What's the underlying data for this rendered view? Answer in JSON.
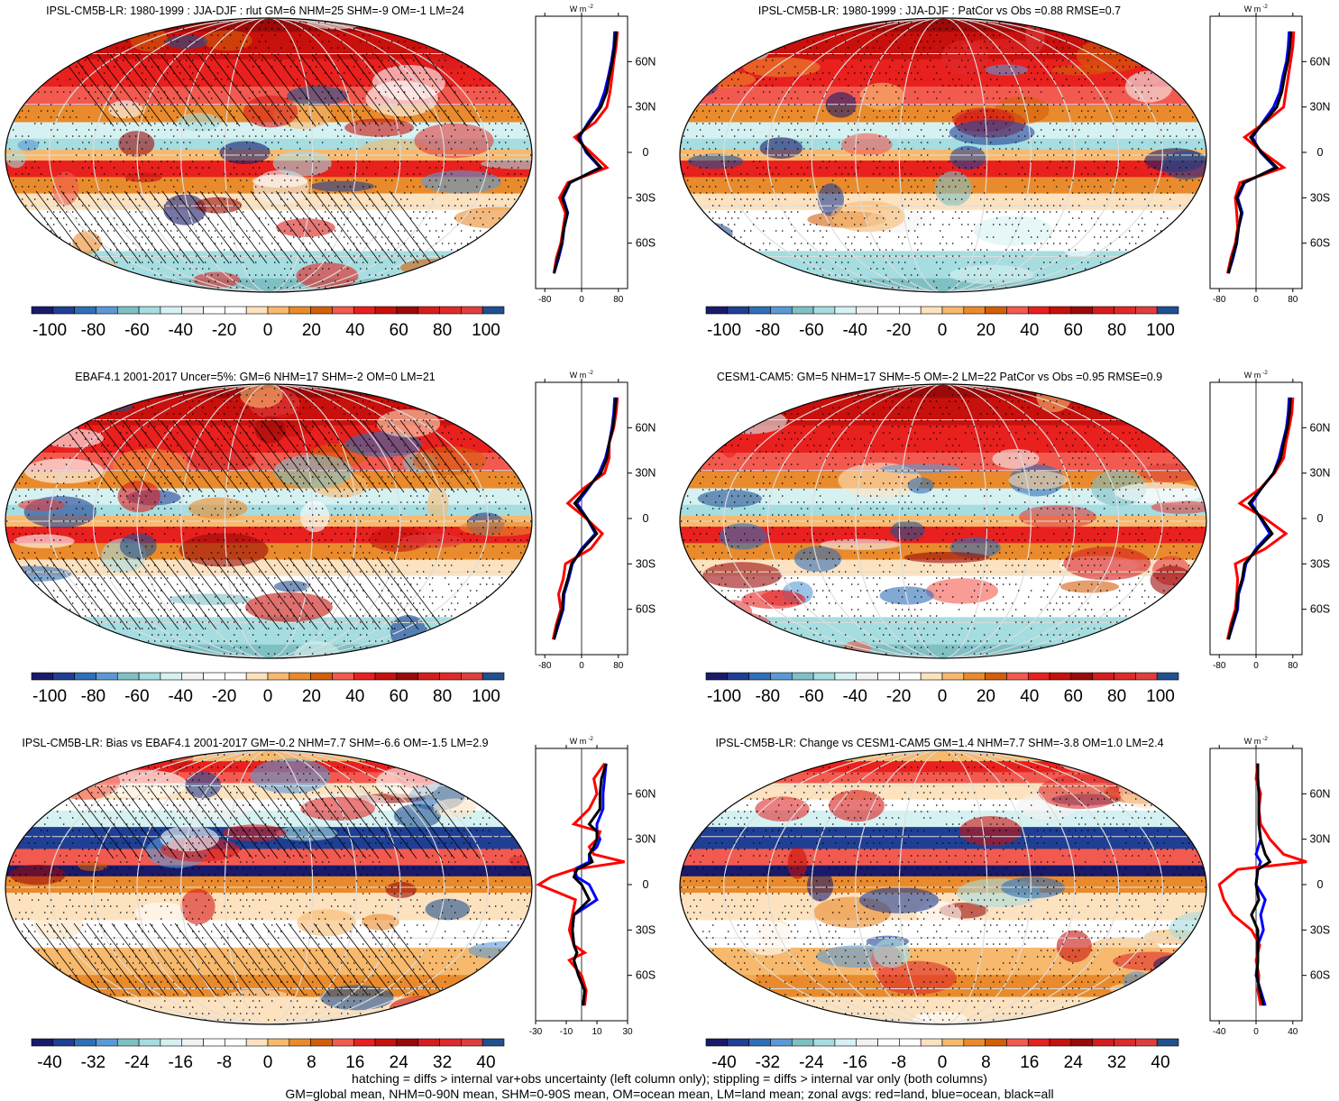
{
  "colors": {
    "standard_scale": [
      "#1a1a6b",
      "#1f3f95",
      "#2f6fb8",
      "#5a99d6",
      "#7fc0c4",
      "#a5dde0",
      "#d6f1f2",
      "#f2f2f2",
      "#ffffff",
      "#ffffff",
      "#fde2bf",
      "#f7b96e",
      "#e98b2c",
      "#d35f0a",
      "#f35a4f",
      "#e8201e",
      "#c8100c",
      "#9b0a08",
      "#d81c1c",
      "#e02a2a",
      "#e03e3e",
      "#20508f"
    ],
    "zonal_land": "#ff0000",
    "zonal_ocean": "#0000ff",
    "zonal_all": "#000000"
  },
  "panels": [
    {
      "title": "IPSL-CM5B-LR: 1980-1999 : JJA-DJF : rlut GM=6 NHM=25 SHM=-9 OM=-1 LM=24",
      "colorbar_labels": [
        "-100",
        "-80",
        "-60",
        "-40",
        "-20",
        "0",
        "20",
        "40",
        "60",
        "80",
        "100"
      ],
      "zonal_unit": "W m",
      "zonal_unit_sup": "-2",
      "zonal_ticks": [
        "-80",
        "0",
        "80"
      ],
      "lat_labels": [
        "60N",
        "30N",
        "0",
        "30S",
        "60S"
      ],
      "hatched": true
    },
    {
      "title": "IPSL-CM5B-LR: 1980-1999 : JJA-DJF : PatCor vs Obs =0.88 RMSE=0.7",
      "colorbar_labels": [
        "-100",
        "-80",
        "-60",
        "-40",
        "-20",
        "0",
        "20",
        "40",
        "60",
        "80",
        "100"
      ],
      "zonal_unit": "W m",
      "zonal_unit_sup": "-2",
      "zonal_ticks": [
        "-80",
        "0",
        "80"
      ],
      "lat_labels": [
        "60N",
        "30N",
        "0",
        "30S",
        "60S"
      ],
      "hatched": false
    },
    {
      "title": "EBAF4.1 2001-2017 Uncer=5%: GM=6 NHM=17 SHM=-2 OM=0 LM=21",
      "colorbar_labels": [
        "-100",
        "-80",
        "-60",
        "-40",
        "-20",
        "0",
        "20",
        "40",
        "60",
        "80",
        "100"
      ],
      "zonal_unit": "W m",
      "zonal_unit_sup": "-2",
      "zonal_ticks": [
        "-80",
        "0",
        "80"
      ],
      "lat_labels": [
        "60N",
        "30N",
        "0",
        "30S",
        "60S"
      ],
      "hatched": true
    },
    {
      "title": "CESM1-CAM5: GM=5 NHM=17 SHM=-5 OM=-2 LM=22 PatCor vs Obs =0.95 RMSE=0.9",
      "colorbar_labels": [
        "-100",
        "-80",
        "-60",
        "-40",
        "-20",
        "0",
        "20",
        "40",
        "60",
        "80",
        "100"
      ],
      "zonal_unit": "W m",
      "zonal_unit_sup": "-2",
      "zonal_ticks": [
        "-80",
        "0",
        "80"
      ],
      "lat_labels": [
        "60N",
        "30N",
        "0",
        "30S",
        "60S"
      ],
      "hatched": false
    },
    {
      "title": "IPSL-CM5B-LR: Bias vs EBAF4.1 2001-2017 GM=-0.2 NHM=7.7 SHM=-6.6 OM=-1.5 LM=2.9",
      "colorbar_labels": [
        "-40",
        "-32",
        "-24",
        "-16",
        "-8",
        "0",
        "8",
        "16",
        "24",
        "32",
        "40"
      ],
      "zonal_unit": "W m",
      "zonal_unit_sup": "-2",
      "zonal_ticks": [
        "-30",
        "-10",
        "10",
        "30"
      ],
      "lat_labels": [
        "60N",
        "30N",
        "0",
        "30S",
        "60S"
      ],
      "hatched": true
    },
    {
      "title": "IPSL-CM5B-LR: Change vs CESM1-CAM5 GM=1.4 NHM=7.7 SHM=-3.8 OM=1.0 LM=2.4",
      "colorbar_labels": [
        "-40",
        "-32",
        "-24",
        "-16",
        "-8",
        "0",
        "8",
        "16",
        "24",
        "32",
        "40"
      ],
      "zonal_unit": "W m",
      "zonal_unit_sup": "-2",
      "zonal_ticks": [
        "-40",
        "0",
        "40"
      ],
      "lat_labels": [
        "60N",
        "30N",
        "0",
        "30S",
        "60S"
      ],
      "hatched": false
    }
  ],
  "footer": {
    "line1": "hatching = diffs > internal var+obs uncertainty (left column only); stippling = diffs > internal var only (both columns)",
    "line2": "GM=global mean, NHM=0-90N mean, SHM=0-90S mean, OM=ocean mean, LM=land mean; zonal avgs: red=land, blue=ocean, black=all"
  },
  "chart_data": [
    {
      "type": "line",
      "title": "IPSL-CM5B-LR: 1980-1999 : JJA-DJF : rlut GM=6 NHM=25 SHM=-9 OM=-1 LM=24",
      "xlabel": "W m-2",
      "xticks": [
        -80,
        0,
        80
      ],
      "xlim": [
        -100,
        100
      ],
      "ylim": [
        -90,
        90
      ],
      "y": [
        -80,
        -70,
        -60,
        -50,
        -40,
        -30,
        -20,
        -10,
        0,
        10,
        20,
        30,
        40,
        50,
        60,
        70,
        80
      ],
      "series": [
        {
          "name": "land",
          "values": [
            -60,
            -55,
            -45,
            -40,
            -35,
            -48,
            -30,
            55,
            20,
            -15,
            30,
            55,
            62,
            66,
            70,
            75,
            78
          ]
        },
        {
          "name": "ocean",
          "values": [
            -60,
            -50,
            -42,
            -38,
            -30,
            -40,
            -25,
            40,
            10,
            -5,
            15,
            38,
            50,
            58,
            65,
            70,
            72
          ]
        },
        {
          "name": "all",
          "values": [
            -60,
            -52,
            -43,
            -38,
            -31,
            -42,
            -26,
            42,
            12,
            -8,
            18,
            42,
            55,
            60,
            67,
            72,
            75
          ]
        }
      ]
    },
    {
      "type": "line",
      "title": "IPSL-CM5B-LR: 1980-1999 : JJA-DJF : PatCor vs Obs =0.88 RMSE=0.7",
      "xlabel": "W m-2",
      "xticks": [
        -80,
        0,
        80
      ],
      "xlim": [
        -100,
        100
      ],
      "ylim": [
        -90,
        90
      ],
      "y": [
        -80,
        -70,
        -60,
        -50,
        -40,
        -30,
        -20,
        -10,
        0,
        10,
        20,
        30,
        40,
        50,
        60,
        70,
        80
      ],
      "series": [
        {
          "name": "land",
          "values": [
            -62,
            -55,
            -45,
            -40,
            -42,
            -45,
            -35,
            60,
            15,
            -25,
            20,
            60,
            65,
            70,
            75,
            80,
            82
          ]
        },
        {
          "name": "ocean",
          "values": [
            -60,
            -50,
            -42,
            -38,
            -30,
            -40,
            -25,
            42,
            10,
            -8,
            15,
            38,
            52,
            58,
            66,
            70,
            72
          ]
        },
        {
          "name": "all",
          "values": [
            -60,
            -52,
            -43,
            -38,
            -32,
            -42,
            -27,
            45,
            12,
            -12,
            18,
            45,
            56,
            62,
            69,
            74,
            76
          ]
        }
      ]
    },
    {
      "type": "line",
      "title": "EBAF4.1 2001-2017 Uncer=5%: GM=6 NHM=17 SHM=-2 OM=0 LM=21",
      "xlabel": "W m-2",
      "xticks": [
        -80,
        0,
        80
      ],
      "xlim": [
        -100,
        100
      ],
      "ylim": [
        -90,
        90
      ],
      "y": [
        -80,
        -70,
        -60,
        -50,
        -40,
        -30,
        -20,
        -10,
        0,
        10,
        20,
        30,
        40,
        50,
        60,
        70,
        80
      ],
      "series": [
        {
          "name": "land",
          "values": [
            -62,
            -55,
            -45,
            -50,
            -40,
            -35,
            20,
            45,
            10,
            -30,
            5,
            50,
            60,
            60,
            70,
            75,
            78
          ]
        },
        {
          "name": "ocean",
          "values": [
            -60,
            -50,
            -40,
            -38,
            -28,
            -20,
            0,
            30,
            12,
            -10,
            15,
            38,
            52,
            60,
            66,
            70,
            72
          ]
        },
        {
          "name": "all",
          "values": [
            -60,
            -52,
            -42,
            -40,
            -30,
            -22,
            3,
            33,
            12,
            -15,
            12,
            42,
            55,
            60,
            68,
            72,
            75
          ]
        }
      ]
    },
    {
      "type": "line",
      "title": "CESM1-CAM5: GM=5 NHM=17 SHM=-5 OM=-2 LM=22 PatCor vs Obs =0.95 RMSE=0.9",
      "xlabel": "W m-2",
      "xticks": [
        -80,
        0,
        80
      ],
      "xlim": [
        -100,
        100
      ],
      "ylim": [
        -90,
        90
      ],
      "y": [
        -80,
        -70,
        -60,
        -50,
        -40,
        -30,
        -20,
        -10,
        0,
        10,
        20,
        30,
        40,
        50,
        60,
        70,
        80
      ],
      "series": [
        {
          "name": "land",
          "values": [
            -62,
            -55,
            -45,
            -42,
            -40,
            -45,
            20,
            65,
            20,
            -35,
            10,
            40,
            60,
            65,
            72,
            78,
            80
          ]
        },
        {
          "name": "ocean",
          "values": [
            -60,
            -50,
            -40,
            -38,
            -28,
            -22,
            0,
            30,
            10,
            -10,
            12,
            38,
            50,
            58,
            66,
            70,
            72
          ]
        },
        {
          "name": "all",
          "values": [
            -60,
            -52,
            -42,
            -40,
            -30,
            -25,
            3,
            35,
            12,
            -15,
            12,
            38,
            54,
            60,
            68,
            73,
            75
          ]
        }
      ]
    },
    {
      "type": "line",
      "title": "IPSL-CM5B-LR: Bias vs EBAF4.1 2001-2017 GM=-0.2 NHM=7.7 SHM=-6.6 OM=-1.5 LM=2.9",
      "xlabel": "W m-2",
      "xticks": [
        -30,
        -10,
        10,
        30
      ],
      "xlim": [
        -30,
        30
      ],
      "ylim": [
        -90,
        90
      ],
      "y": [
        -80,
        -70,
        -60,
        -50,
        -45,
        -40,
        -30,
        -20,
        -10,
        0,
        5,
        10,
        15,
        20,
        25,
        30,
        35,
        40,
        50,
        60,
        70,
        80
      ],
      "series": [
        {
          "name": "land",
          "values": [
            2,
            3,
            0,
            -8,
            2,
            -5,
            -8,
            -6,
            -4,
            -28,
            -20,
            -5,
            28,
            8,
            5,
            10,
            12,
            -5,
            5,
            10,
            8,
            15
          ]
        },
        {
          "name": "ocean",
          "values": [
            1,
            2,
            -2,
            -5,
            -3,
            -5,
            -6,
            -5,
            10,
            5,
            -3,
            -5,
            5,
            5,
            10,
            12,
            10,
            10,
            14,
            14,
            15,
            16
          ]
        },
        {
          "name": "all",
          "values": [
            1,
            2,
            -2,
            -5,
            -3,
            -5,
            -6,
            -5,
            5,
            0,
            -5,
            -3,
            7,
            5,
            8,
            10,
            10,
            5,
            12,
            12,
            13,
            16
          ]
        }
      ]
    },
    {
      "type": "line",
      "title": "IPSL-CM5B-LR: Change vs CESM1-CAM5 GM=1.4 NHM=7.7 SHM=-3.8 OM=1.0 LM=2.4",
      "xlabel": "W m-2",
      "xticks": [
        -40,
        0,
        40
      ],
      "xlim": [
        -50,
        50
      ],
      "ylim": [
        -90,
        90
      ],
      "y": [
        -80,
        -70,
        -60,
        -50,
        -40,
        -30,
        -20,
        -10,
        0,
        10,
        15,
        20,
        30,
        40,
        50,
        60,
        70,
        80
      ],
      "series": [
        {
          "name": "land",
          "values": [
            5,
            2,
            3,
            0,
            4,
            -5,
            -25,
            -35,
            -40,
            -20,
            55,
            30,
            15,
            5,
            3,
            5,
            0,
            2
          ]
        },
        {
          "name": "ocean",
          "values": [
            10,
            5,
            0,
            2,
            2,
            8,
            5,
            10,
            0,
            2,
            5,
            0,
            5,
            3,
            3,
            3,
            2,
            2
          ]
        },
        {
          "name": "all",
          "values": [
            8,
            4,
            1,
            2,
            2,
            2,
            -5,
            3,
            0,
            2,
            15,
            10,
            5,
            3,
            3,
            3,
            2,
            2
          ]
        }
      ]
    }
  ]
}
